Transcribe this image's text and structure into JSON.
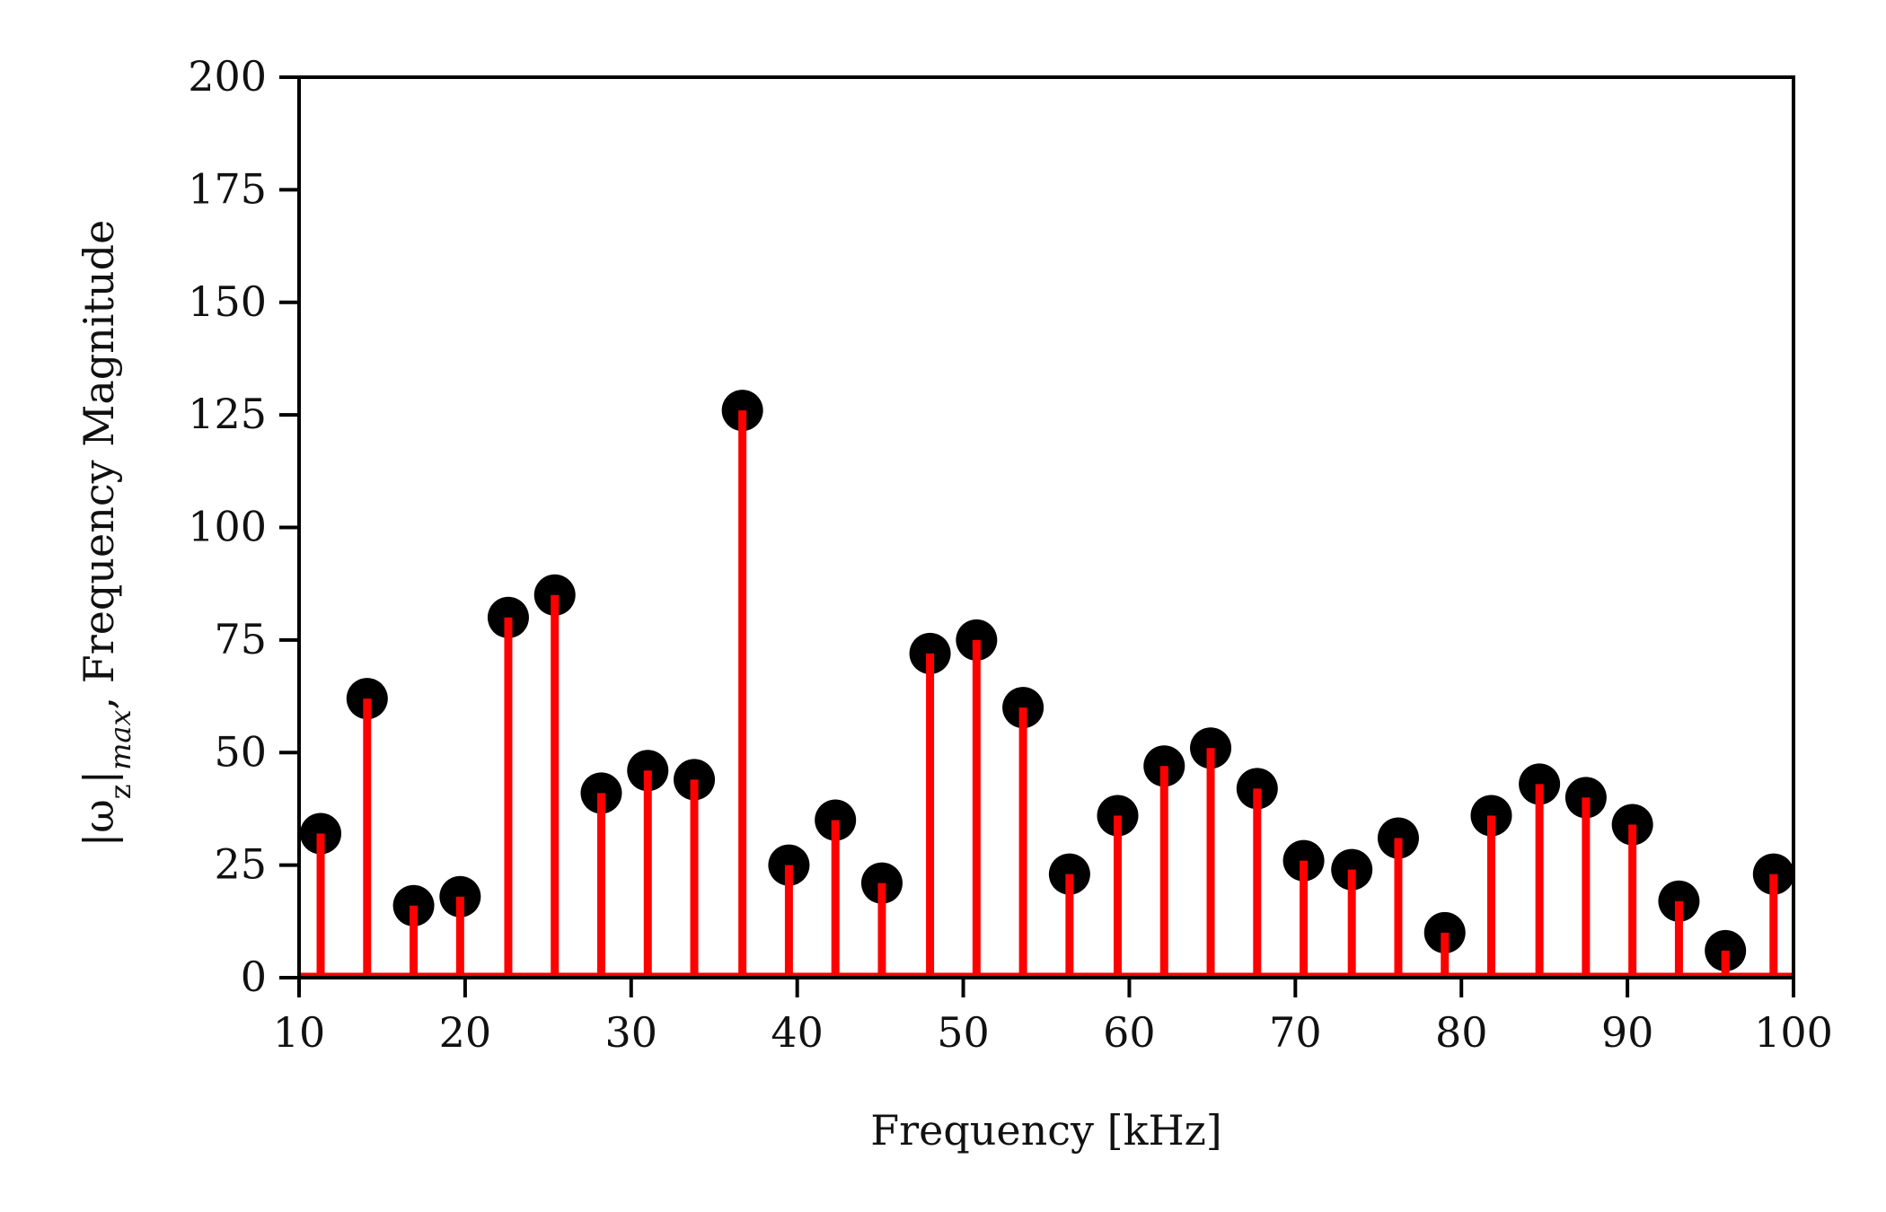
{
  "chart_data": {
    "type": "stem",
    "xlabel": "Frequency [kHz]",
    "ylabel": "|ω_z|_max, Frequency Magnitude",
    "ylabel_parts": {
      "omega": "|ω",
      "sub_z": "z",
      "bar": "|",
      "sub_max": "max",
      "rest": ",  Frequency Magnitude"
    },
    "xlim": [
      10,
      100
    ],
    "ylim": [
      0,
      200
    ],
    "xticks": [
      10,
      20,
      30,
      40,
      50,
      60,
      70,
      80,
      90,
      100
    ],
    "yticks": [
      0,
      25,
      50,
      75,
      100,
      125,
      150,
      175,
      200
    ],
    "stem_color": "#ff0000",
    "marker_color": "#000000",
    "points": [
      {
        "x": 11.3,
        "y": 32
      },
      {
        "x": 14.1,
        "y": 62
      },
      {
        "x": 16.9,
        "y": 16
      },
      {
        "x": 19.7,
        "y": 18
      },
      {
        "x": 22.6,
        "y": 80
      },
      {
        "x": 25.4,
        "y": 85
      },
      {
        "x": 28.2,
        "y": 41
      },
      {
        "x": 31.0,
        "y": 46
      },
      {
        "x": 33.8,
        "y": 44
      },
      {
        "x": 36.7,
        "y": 126
      },
      {
        "x": 39.5,
        "y": 25
      },
      {
        "x": 42.3,
        "y": 35
      },
      {
        "x": 45.1,
        "y": 21
      },
      {
        "x": 48.0,
        "y": 72
      },
      {
        "x": 50.8,
        "y": 75
      },
      {
        "x": 53.6,
        "y": 60
      },
      {
        "x": 56.4,
        "y": 23
      },
      {
        "x": 59.3,
        "y": 36
      },
      {
        "x": 62.1,
        "y": 47
      },
      {
        "x": 64.9,
        "y": 51
      },
      {
        "x": 67.7,
        "y": 42
      },
      {
        "x": 70.5,
        "y": 26
      },
      {
        "x": 73.4,
        "y": 24
      },
      {
        "x": 76.2,
        "y": 31
      },
      {
        "x": 79.0,
        "y": 10
      },
      {
        "x": 81.8,
        "y": 36
      },
      {
        "x": 84.7,
        "y": 43
      },
      {
        "x": 87.5,
        "y": 40
      },
      {
        "x": 90.3,
        "y": 34
      },
      {
        "x": 93.1,
        "y": 17
      },
      {
        "x": 95.9,
        "y": 6
      },
      {
        "x": 98.8,
        "y": 23
      }
    ]
  }
}
